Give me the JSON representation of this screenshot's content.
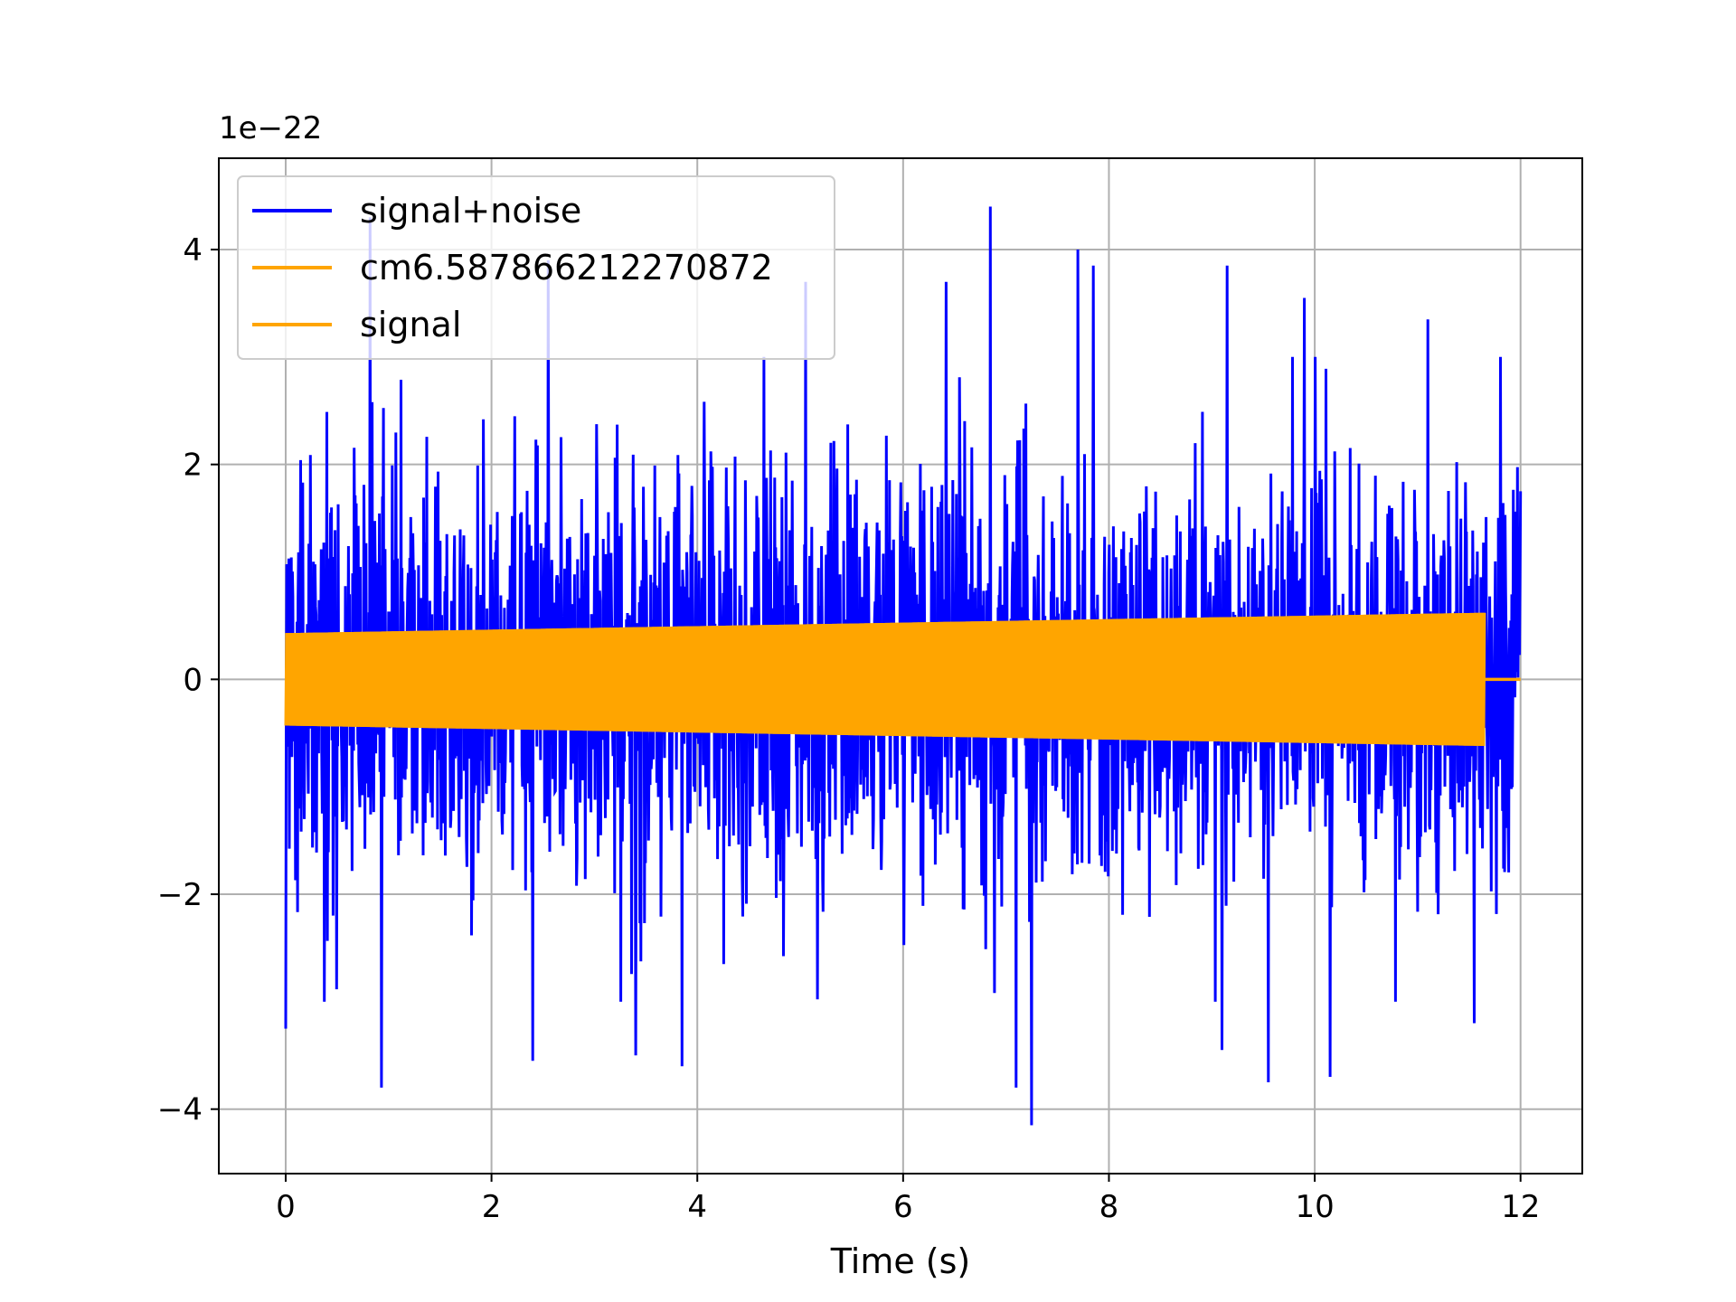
{
  "chart_data": {
    "type": "line",
    "title": "",
    "xlabel": "Time (s)",
    "ylabel": "",
    "y_offset_text": "1e−22",
    "xlim": [
      -0.65,
      12.6
    ],
    "ylim": [
      -4.6,
      4.85
    ],
    "xticks": [
      0,
      2,
      4,
      6,
      8,
      10,
      12
    ],
    "xtick_labels": [
      "0",
      "2",
      "4",
      "6",
      "8",
      "10",
      "12"
    ],
    "yticks": [
      -4,
      -2,
      0,
      2,
      4
    ],
    "ytick_labels": [
      "−4",
      "−2",
      "0",
      "2",
      "4"
    ],
    "grid": true,
    "legend_position": "upper-left",
    "series": [
      {
        "name": "signal+noise",
        "color": "#0000ff",
        "x_range": [
          0,
          12
        ],
        "envelope_typical": 1.9,
        "envelope_max": 4.4,
        "envelope_min": -4.15,
        "peak_points": [
          {
            "x": 0.0,
            "y": -3.25
          },
          {
            "x": 0.93,
            "y": -3.8
          },
          {
            "x": 0.82,
            "y": 4.3
          },
          {
            "x": 2.4,
            "y": -3.55
          },
          {
            "x": 2.55,
            "y": 3.9
          },
          {
            "x": 3.4,
            "y": -3.5
          },
          {
            "x": 3.85,
            "y": -3.6
          },
          {
            "x": 5.05,
            "y": 3.7
          },
          {
            "x": 6.42,
            "y": 3.7
          },
          {
            "x": 6.85,
            "y": 4.4
          },
          {
            "x": 7.1,
            "y": -3.8
          },
          {
            "x": 7.25,
            "y": -4.15
          },
          {
            "x": 7.7,
            "y": 4.0
          },
          {
            "x": 7.85,
            "y": 3.85
          },
          {
            "x": 9.1,
            "y": -3.45
          },
          {
            "x": 9.15,
            "y": 3.85
          },
          {
            "x": 9.55,
            "y": -3.75
          },
          {
            "x": 9.9,
            "y": 3.55
          },
          {
            "x": 10.15,
            "y": -3.7
          },
          {
            "x": 11.1,
            "y": 3.35
          },
          {
            "x": 11.55,
            "y": -3.2
          },
          {
            "x": 12.0,
            "y": 1.75
          }
        ]
      },
      {
        "name": "cm6.587866212270872",
        "color": "#ffa500",
        "x_range": [
          0,
          11.65
        ],
        "amplitude_start": 0.43,
        "amplitude_end": 0.62
      },
      {
        "name": "signal",
        "color": "#ffa500",
        "x_range": [
          11.65,
          12
        ],
        "value": 0
      }
    ]
  }
}
